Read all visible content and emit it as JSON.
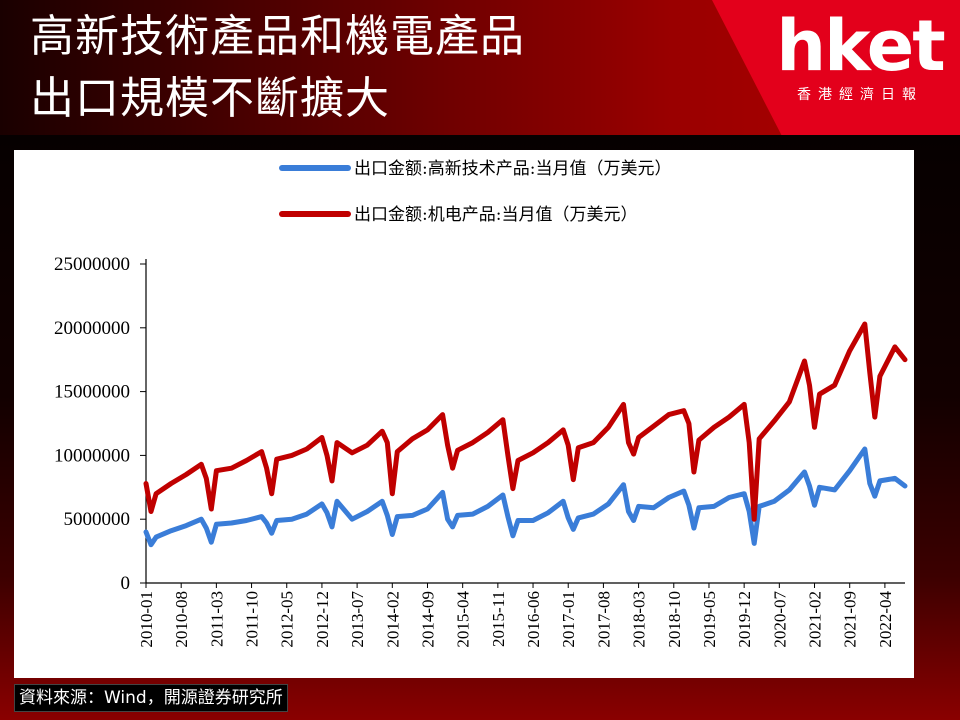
{
  "header": {
    "title_line1": "高新技術產品和機電產品",
    "title_line2": "出口規模不斷擴大",
    "logo_text": "hket",
    "logo_subtitle": "香港經濟日報",
    "logo_color": "#e3001b"
  },
  "source": "資料來源：Wind，開源證券研究所",
  "chart_data": {
    "type": "line",
    "title": "",
    "xlabel": "",
    "ylabel": "",
    "ylim": [
      0,
      25000000
    ],
    "yticks": [
      "0",
      "5000000",
      "10000000",
      "15000000",
      "20000000",
      "25000000"
    ],
    "xticks": [
      "2010-01",
      "2010-08",
      "2011-03",
      "2011-10",
      "2012-05",
      "2012-12",
      "2013-07",
      "2014-02",
      "2014-09",
      "2015-04",
      "2015-11",
      "2016-06",
      "2017-01",
      "2017-08",
      "2018-03",
      "2018-10",
      "2019-05",
      "2019-12",
      "2020-07",
      "2021-02",
      "2021-09",
      "2022-04"
    ],
    "grid": false,
    "legend_position": "top",
    "series": [
      {
        "name": "出口金额:高新技术产品:当月值（万美元）",
        "color": "#3a7dd8",
        "x": [
          "2010-01",
          "2010-02",
          "2010-03",
          "2010-06",
          "2010-09",
          "2010-12",
          "2011-01",
          "2011-02",
          "2011-03",
          "2011-06",
          "2011-09",
          "2011-12",
          "2012-01",
          "2012-02",
          "2012-03",
          "2012-06",
          "2012-09",
          "2012-12",
          "2013-01",
          "2013-02",
          "2013-03",
          "2013-06",
          "2013-09",
          "2013-12",
          "2014-01",
          "2014-02",
          "2014-03",
          "2014-06",
          "2014-09",
          "2014-12",
          "2015-01",
          "2015-02",
          "2015-03",
          "2015-06",
          "2015-09",
          "2015-12",
          "2016-01",
          "2016-02",
          "2016-03",
          "2016-06",
          "2016-09",
          "2016-12",
          "2017-01",
          "2017-02",
          "2017-03",
          "2017-06",
          "2017-09",
          "2017-12",
          "2018-01",
          "2018-02",
          "2018-03",
          "2018-06",
          "2018-09",
          "2018-12",
          "2019-01",
          "2019-02",
          "2019-03",
          "2019-06",
          "2019-09",
          "2019-12",
          "2020-01",
          "2020-02",
          "2020-03",
          "2020-06",
          "2020-09",
          "2020-12",
          "2021-01",
          "2021-02",
          "2021-03",
          "2021-06",
          "2021-09",
          "2021-12",
          "2022-01",
          "2022-02",
          "2022-03",
          "2022-06",
          "2022-08"
        ],
        "values": [
          4000000,
          3000000,
          3600000,
          4100000,
          4500000,
          5000000,
          4300000,
          3200000,
          4600000,
          4700000,
          4900000,
          5200000,
          4700000,
          3900000,
          4900000,
          5000000,
          5400000,
          6200000,
          5500000,
          4400000,
          6400000,
          5000000,
          5600000,
          6400000,
          5300000,
          3800000,
          5200000,
          5300000,
          5800000,
          7100000,
          5000000,
          4400000,
          5300000,
          5400000,
          6000000,
          6900000,
          5200000,
          3700000,
          4900000,
          4900000,
          5500000,
          6400000,
          5100000,
          4200000,
          5100000,
          5400000,
          6200000,
          7700000,
          5600000,
          4900000,
          6000000,
          5900000,
          6700000,
          7200000,
          6100000,
          4300000,
          5900000,
          6000000,
          6700000,
          7000000,
          5600000,
          3100000,
          6000000,
          6400000,
          7300000,
          8700000,
          7600000,
          6100000,
          7500000,
          7300000,
          8800000,
          10500000,
          7800000,
          6800000,
          8000000,
          8200000,
          7600000
        ]
      },
      {
        "name": "出口金额:机电产品:当月值（万美元）",
        "color": "#c00000",
        "x": [
          "2010-01",
          "2010-02",
          "2010-03",
          "2010-06",
          "2010-09",
          "2010-12",
          "2011-01",
          "2011-02",
          "2011-03",
          "2011-06",
          "2011-09",
          "2011-12",
          "2012-01",
          "2012-02",
          "2012-03",
          "2012-06",
          "2012-09",
          "2012-12",
          "2013-01",
          "2013-02",
          "2013-03",
          "2013-06",
          "2013-09",
          "2013-12",
          "2014-01",
          "2014-02",
          "2014-03",
          "2014-06",
          "2014-09",
          "2014-12",
          "2015-01",
          "2015-02",
          "2015-03",
          "2015-06",
          "2015-09",
          "2015-12",
          "2016-01",
          "2016-02",
          "2016-03",
          "2016-06",
          "2016-09",
          "2016-12",
          "2017-01",
          "2017-02",
          "2017-03",
          "2017-06",
          "2017-09",
          "2017-12",
          "2018-01",
          "2018-02",
          "2018-03",
          "2018-06",
          "2018-09",
          "2018-12",
          "2019-01",
          "2019-02",
          "2019-03",
          "2019-06",
          "2019-09",
          "2019-12",
          "2020-01",
          "2020-02",
          "2020-03",
          "2020-06",
          "2020-09",
          "2020-12",
          "2021-01",
          "2021-02",
          "2021-03",
          "2021-06",
          "2021-09",
          "2021-12",
          "2022-01",
          "2022-02",
          "2022-03",
          "2022-06",
          "2022-08"
        ],
        "values": [
          7800000,
          5600000,
          7000000,
          7800000,
          8500000,
          9300000,
          8200000,
          5800000,
          8800000,
          9000000,
          9600000,
          10300000,
          9000000,
          7000000,
          9700000,
          10000000,
          10500000,
          11400000,
          10000000,
          8000000,
          11000000,
          10200000,
          10800000,
          11900000,
          11000000,
          7000000,
          10300000,
          11300000,
          12000000,
          13200000,
          10800000,
          9000000,
          10400000,
          11000000,
          11800000,
          12800000,
          10000000,
          7400000,
          9600000,
          10200000,
          11000000,
          12000000,
          10800000,
          8100000,
          10600000,
          11000000,
          12200000,
          14000000,
          11000000,
          10100000,
          11400000,
          12300000,
          13200000,
          13500000,
          12500000,
          8700000,
          11200000,
          12200000,
          13000000,
          14000000,
          11000000,
          5000000,
          11300000,
          12700000,
          14200000,
          17400000,
          15500000,
          12200000,
          14800000,
          15500000,
          18200000,
          20300000,
          16500000,
          13000000,
          16200000,
          18500000,
          17500000
        ]
      }
    ]
  }
}
